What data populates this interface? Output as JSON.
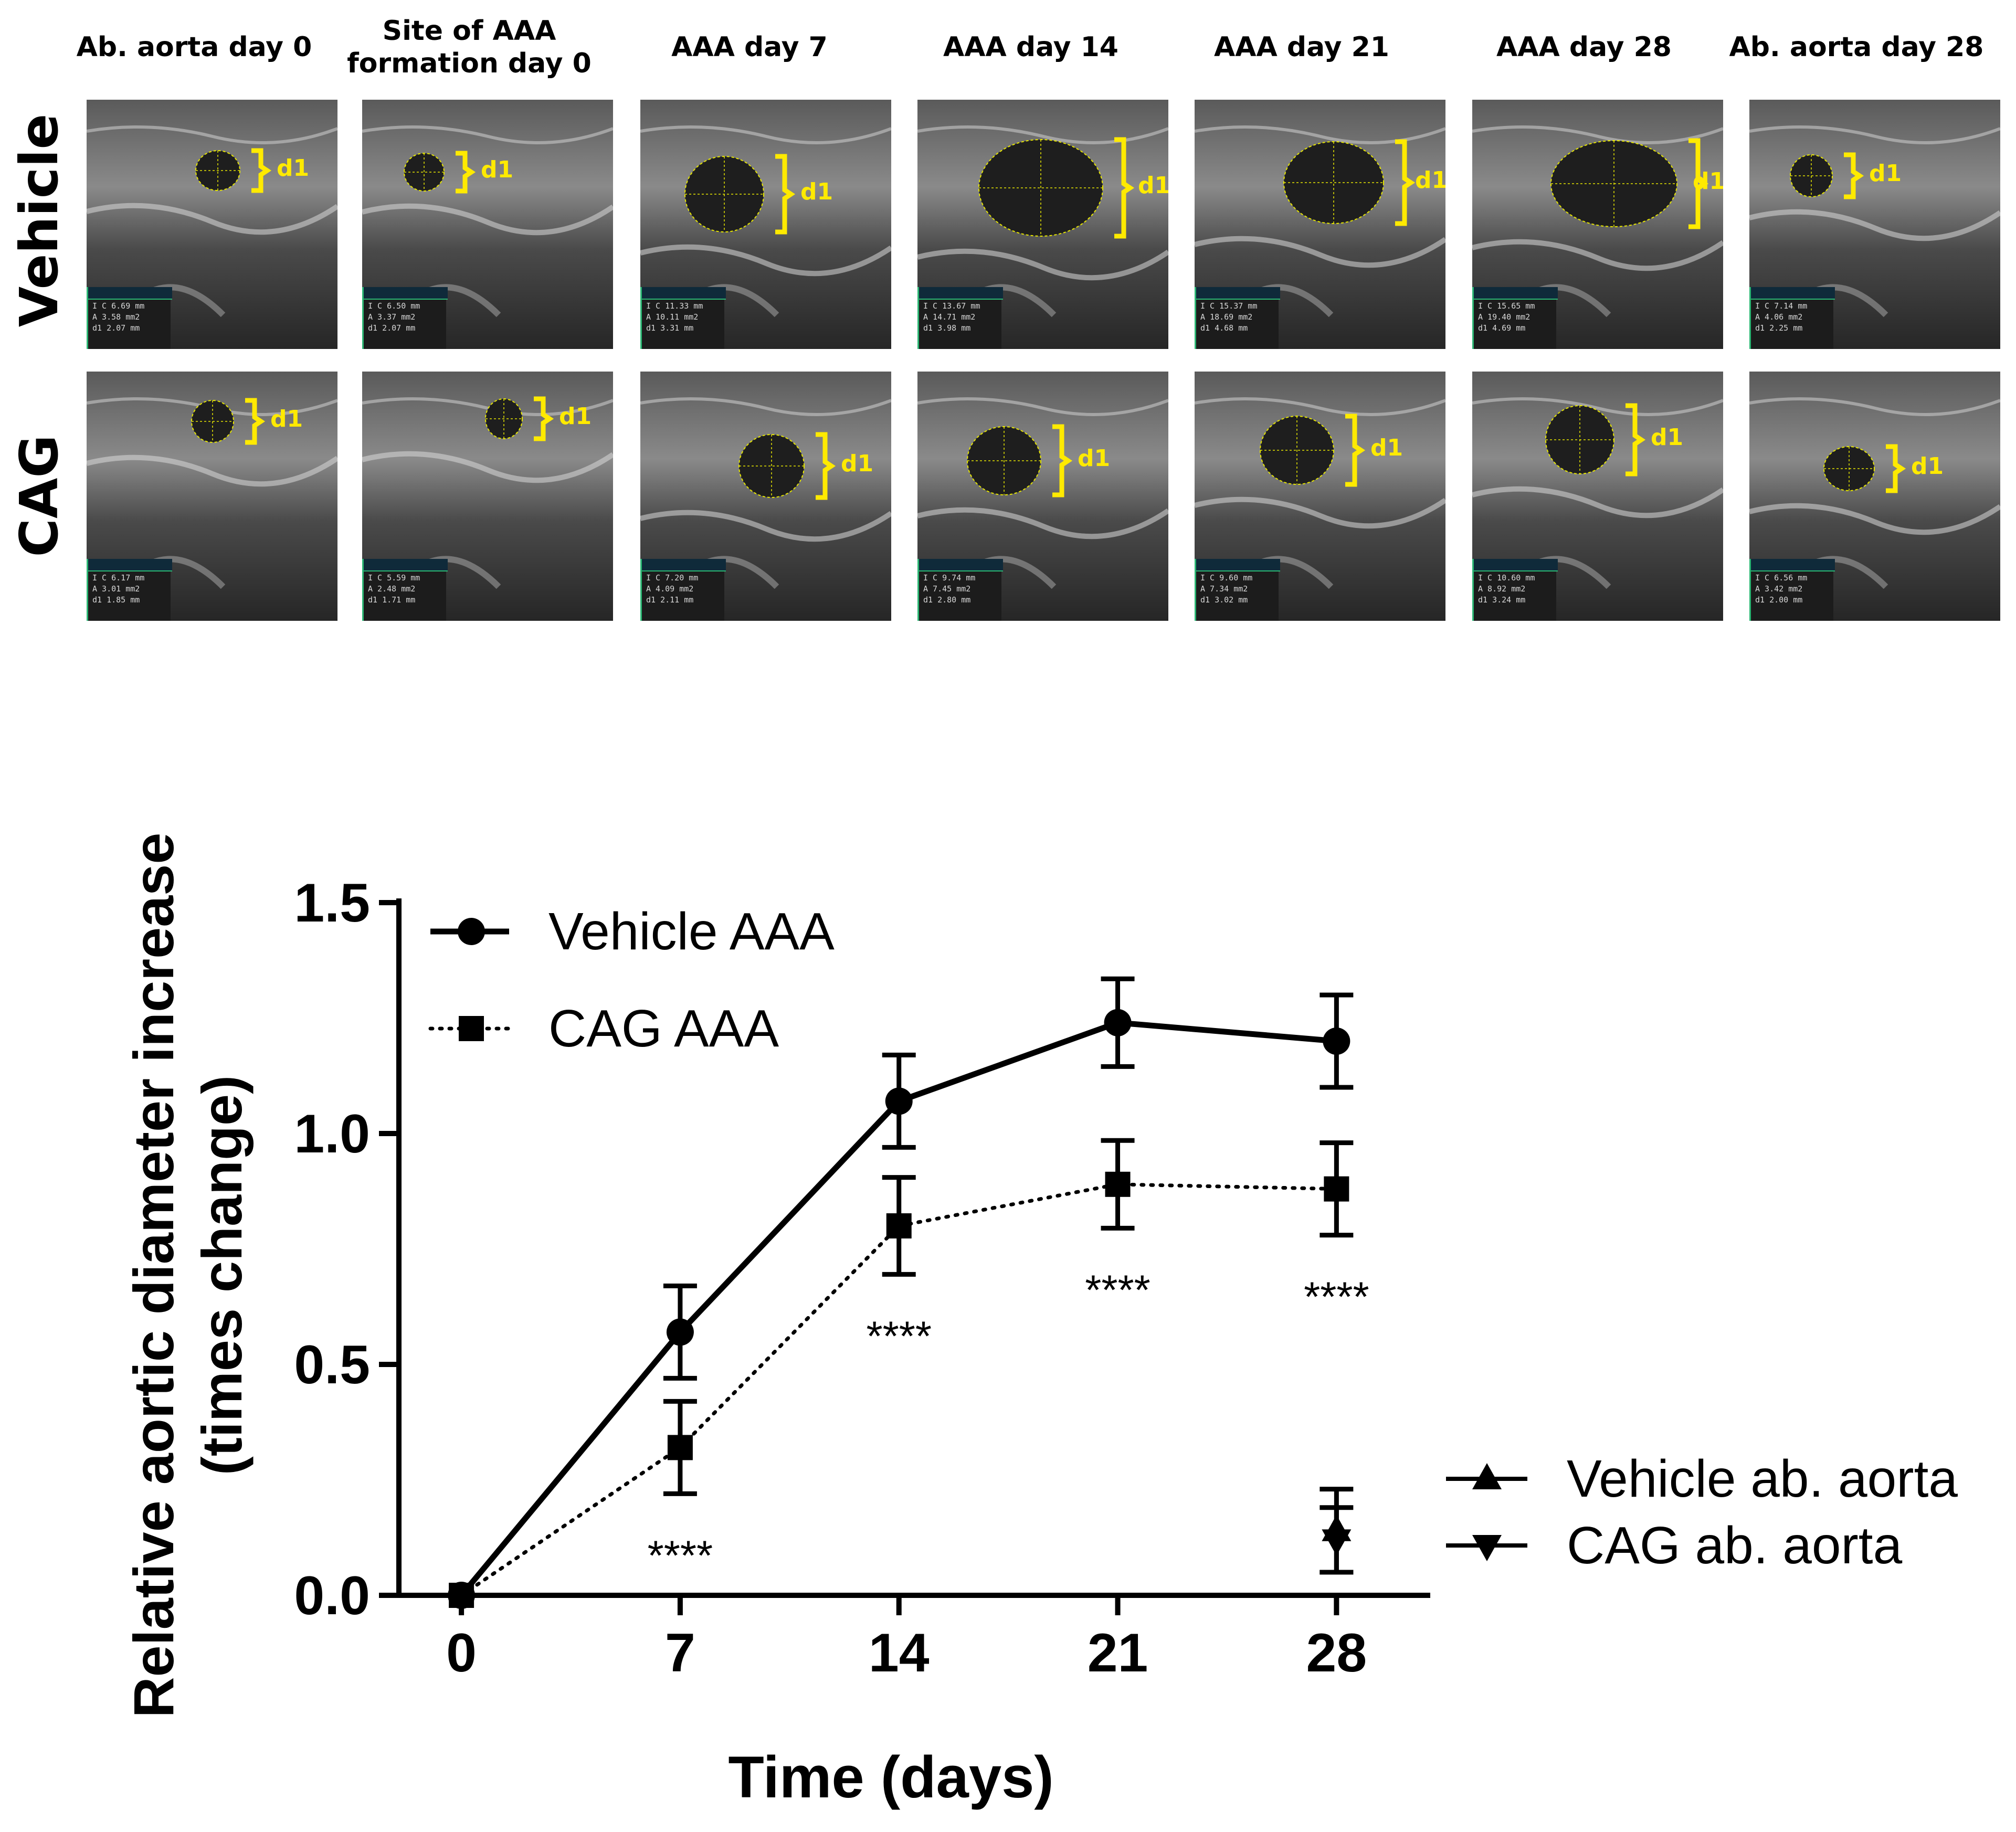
{
  "panels": {
    "columns": [
      "Ab. aorta day 0",
      "Site of AAA formation day 0",
      "AAA day 7",
      "AAA day 14",
      "AAA day 21",
      "AAA day 28",
      "Ab. aorta day 28"
    ],
    "rows": [
      {
        "label": "Vehicle",
        "cells": [
          {
            "c": "6.69 mm",
            "a": "3.58 mm2",
            "d1": "2.07 mm",
            "marker": "d1"
          },
          {
            "c": "6.50 mm",
            "a": "3.37 mm2",
            "d1": "2.07 mm",
            "marker": "d1"
          },
          {
            "c": "11.33 mm",
            "a": "10.11 mm2",
            "d1": "3.31 mm",
            "marker": "d1"
          },
          {
            "c": "13.67 mm",
            "a": "14.71 mm2",
            "d1": "3.98 mm",
            "marker": "d1"
          },
          {
            "c": "15.37 mm",
            "a": "18.69 mm2",
            "d1": "4.68 mm",
            "marker": "d1"
          },
          {
            "c": "15.65 mm",
            "a": "19.40 mm2",
            "d1": "4.69 mm",
            "marker": "d1"
          },
          {
            "c": "7.14 mm",
            "a": "4.06 mm2",
            "d1": "2.25 mm",
            "marker": "d1"
          }
        ]
      },
      {
        "label": "CAG",
        "cells": [
          {
            "c": "6.17 mm",
            "a": "3.01 mm2",
            "d1": "1.85 mm",
            "marker": "d1"
          },
          {
            "c": "5.59 mm",
            "a": "2.48 mm2",
            "d1": "1.71 mm",
            "marker": "d1"
          },
          {
            "c": "7.20 mm",
            "a": "4.09 mm2",
            "d1": "2.11 mm",
            "marker": "d1"
          },
          {
            "c": "9.74 mm",
            "a": "7.45 mm2",
            "d1": "2.80 mm",
            "marker": "d1"
          },
          {
            "c": "9.60 mm",
            "a": "7.34 mm2",
            "d1": "3.02 mm",
            "marker": "d1"
          },
          {
            "c": "10.60 mm",
            "a": "8.92 mm2",
            "d1": "3.24 mm",
            "marker": "d1"
          },
          {
            "c": "6.56 mm",
            "a": "3.42 mm2",
            "d1": "2.00 mm",
            "marker": "d1"
          }
        ]
      }
    ]
  },
  "chart_data": {
    "type": "line",
    "title": "",
    "xlabel": "Time (days)",
    "ylabel": "Relative aortic diameter increase (times change)",
    "ylabel_lines": [
      "Relative aortic diameter increase",
      "(times change)"
    ],
    "x": [
      0,
      7,
      14,
      21,
      28
    ],
    "x_ticks": [
      "0",
      "7",
      "14",
      "21",
      "28"
    ],
    "y_ticks": [
      "0.0",
      "0.5",
      "1.0",
      "1.5"
    ],
    "xlim": [
      -2,
      31
    ],
    "ylim": [
      0,
      1.5
    ],
    "grid": false,
    "series": [
      {
        "name": "Vehicle AAA",
        "marker": "circle",
        "line": "solid",
        "x": [
          0,
          7,
          14,
          21,
          28
        ],
        "values": [
          0,
          0.57,
          1.07,
          1.24,
          1.2
        ],
        "errors": [
          0,
          0.1,
          0.1,
          0.095,
          0.1
        ]
      },
      {
        "name": "CAG AAA",
        "marker": "square",
        "line": "dotted",
        "x": [
          0,
          7,
          14,
          21,
          28
        ],
        "values": [
          0,
          0.32,
          0.8,
          0.89,
          0.88
        ],
        "errors": [
          0,
          0.1,
          0.105,
          0.095,
          0.1
        ]
      },
      {
        "name": "Vehicle ab. aorta",
        "marker": "triangle-up",
        "line": "none",
        "x": [
          28
        ],
        "values": [
          0.14
        ],
        "errors": [
          0.09
        ]
      },
      {
        "name": "CAG ab. aorta",
        "marker": "triangle-down",
        "line": "none",
        "x": [
          28
        ],
        "values": [
          0.12
        ],
        "errors": [
          0.07
        ]
      }
    ],
    "annotations": [
      {
        "x": 7,
        "text": "****"
      },
      {
        "x": 14,
        "text": "****"
      },
      {
        "x": 21,
        "text": "****"
      },
      {
        "x": 28,
        "text": "****"
      }
    ],
    "legend_placement": [
      "top-left",
      "bottom-right"
    ]
  }
}
